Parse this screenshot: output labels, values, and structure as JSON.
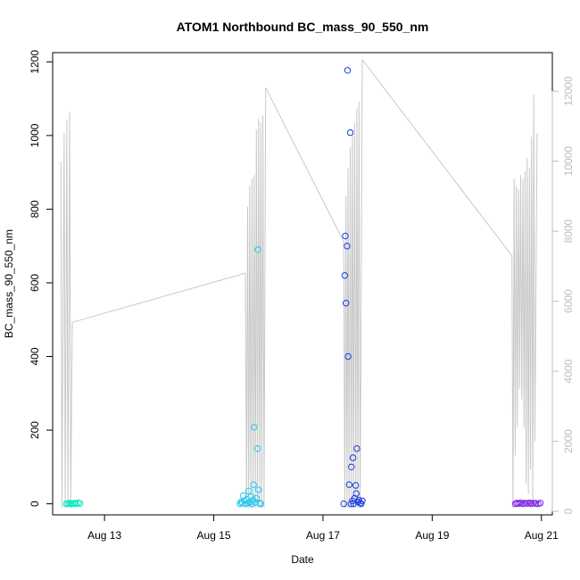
{
  "chart_data": {
    "type": "scatter",
    "title": "ATOM1 Northbound BC_mass_90_550_nm",
    "xlabel": "Date",
    "ylabel": "BC_mass_90_550_nm",
    "x_ticks": [
      "Aug 13",
      "Aug 15",
      "Aug 17",
      "Aug 19",
      "Aug 21"
    ],
    "xlim": [
      12.05,
      21.2
    ],
    "ylim": [
      -30,
      1225
    ],
    "y_ticks": [
      0,
      200,
      400,
      600,
      800,
      1000,
      1200
    ],
    "y2lim": [
      -100,
      13100
    ],
    "y2_ticks": [
      0,
      2000,
      4000,
      6000,
      8000,
      10000,
      12000
    ],
    "grid": false,
    "colors": {
      "series1": "#00e8c0",
      "series2": "#1ec8f0",
      "series3": "#1a3ee0",
      "series4": "#7a1ee8",
      "line": "#c8c8c8"
    },
    "series": [
      {
        "color_key": "series1",
        "points": [
          [
            12.3,
            0
          ],
          [
            12.33,
            1
          ],
          [
            12.36,
            2
          ],
          [
            12.39,
            0
          ],
          [
            12.42,
            1
          ],
          [
            12.45,
            2
          ],
          [
            12.48,
            0
          ],
          [
            12.52,
            3
          ],
          [
            12.55,
            1
          ]
        ]
      },
      {
        "color_key": "series2",
        "points": [
          [
            15.48,
            0
          ],
          [
            15.5,
            5
          ],
          [
            15.52,
            2
          ],
          [
            15.54,
            22
          ],
          [
            15.56,
            8
          ],
          [
            15.58,
            0
          ],
          [
            15.6,
            12
          ],
          [
            15.62,
            2
          ],
          [
            15.64,
            35
          ],
          [
            15.66,
            4
          ],
          [
            15.68,
            20
          ],
          [
            15.7,
            0
          ],
          [
            15.72,
            10
          ],
          [
            15.73,
            52
          ],
          [
            15.74,
            208
          ],
          [
            15.76,
            4
          ],
          [
            15.78,
            15
          ],
          [
            15.8,
            150
          ],
          [
            15.81,
            690
          ],
          [
            15.82,
            38
          ],
          [
            15.84,
            2
          ],
          [
            15.86,
            0
          ]
        ]
      },
      {
        "color_key": "series3",
        "points": [
          [
            17.38,
            0
          ],
          [
            17.4,
            620
          ],
          [
            17.41,
            727
          ],
          [
            17.42,
            545
          ],
          [
            17.44,
            700
          ],
          [
            17.45,
            1177
          ],
          [
            17.46,
            400
          ],
          [
            17.48,
            52
          ],
          [
            17.5,
            1008
          ],
          [
            17.51,
            0
          ],
          [
            17.52,
            100
          ],
          [
            17.54,
            8
          ],
          [
            17.55,
            125
          ],
          [
            17.56,
            0
          ],
          [
            17.58,
            15
          ],
          [
            17.6,
            50
          ],
          [
            17.61,
            28
          ],
          [
            17.62,
            150
          ],
          [
            17.64,
            5
          ],
          [
            17.66,
            10
          ],
          [
            17.68,
            2
          ],
          [
            17.7,
            0
          ],
          [
            17.72,
            8
          ]
        ]
      },
      {
        "color_key": "series4",
        "points": [
          [
            20.52,
            0
          ],
          [
            20.55,
            2
          ],
          [
            20.58,
            1
          ],
          [
            20.62,
            3
          ],
          [
            20.66,
            0
          ],
          [
            20.7,
            2
          ],
          [
            20.74,
            1
          ],
          [
            20.78,
            3
          ],
          [
            20.82,
            0
          ],
          [
            20.86,
            2
          ],
          [
            20.9,
            1
          ],
          [
            20.94,
            0
          ],
          [
            20.98,
            2
          ]
        ]
      }
    ],
    "secondary_line": {
      "points": [
        [
          12.2,
          10000
        ],
        [
          12.22,
          100
        ],
        [
          12.26,
          10800
        ],
        [
          12.28,
          100
        ],
        [
          12.31,
          11200
        ],
        [
          12.33,
          100
        ],
        [
          12.36,
          11400
        ],
        [
          12.38,
          100
        ],
        [
          12.41,
          5400
        ],
        [
          15.58,
          6800
        ],
        [
          15.6,
          100
        ],
        [
          15.62,
          8700
        ],
        [
          15.64,
          100
        ],
        [
          15.66,
          9300
        ],
        [
          15.68,
          100
        ],
        [
          15.7,
          9500
        ],
        [
          15.72,
          100
        ],
        [
          15.74,
          9600
        ],
        [
          15.76,
          100
        ],
        [
          15.78,
          10900
        ],
        [
          15.8,
          100
        ],
        [
          15.82,
          11200
        ],
        [
          15.84,
          100
        ],
        [
          15.86,
          11100
        ],
        [
          15.88,
          100
        ],
        [
          15.9,
          11300
        ],
        [
          15.92,
          100
        ],
        [
          15.95,
          12100
        ],
        [
          17.38,
          7700
        ],
        [
          17.4,
          100
        ],
        [
          17.42,
          9000
        ],
        [
          17.44,
          100
        ],
        [
          17.46,
          9800
        ],
        [
          17.48,
          100
        ],
        [
          17.5,
          10400
        ],
        [
          17.52,
          100
        ],
        [
          17.54,
          10800
        ],
        [
          17.56,
          100
        ],
        [
          17.58,
          11100
        ],
        [
          17.6,
          100
        ],
        [
          17.62,
          11500
        ],
        [
          17.64,
          100
        ],
        [
          17.66,
          11700
        ],
        [
          17.68,
          100
        ],
        [
          17.72,
          12900
        ],
        [
          20.46,
          7300
        ],
        [
          20.48,
          100
        ],
        [
          20.5,
          9500
        ],
        [
          20.52,
          1600
        ],
        [
          20.54,
          9300
        ],
        [
          20.56,
          2400
        ],
        [
          20.58,
          9200
        ],
        [
          20.6,
          3500
        ],
        [
          20.62,
          9600
        ],
        [
          20.64,
          3200
        ],
        [
          20.66,
          9500
        ],
        [
          20.68,
          2400
        ],
        [
          20.7,
          9700
        ],
        [
          20.72,
          800
        ],
        [
          20.74,
          10100
        ],
        [
          20.76,
          500
        ],
        [
          20.78,
          9800
        ],
        [
          20.8,
          1200
        ],
        [
          20.82,
          10700
        ],
        [
          20.84,
          300
        ],
        [
          20.86,
          11900
        ],
        [
          20.88,
          2000
        ],
        [
          20.92,
          10800
        ]
      ]
    }
  }
}
